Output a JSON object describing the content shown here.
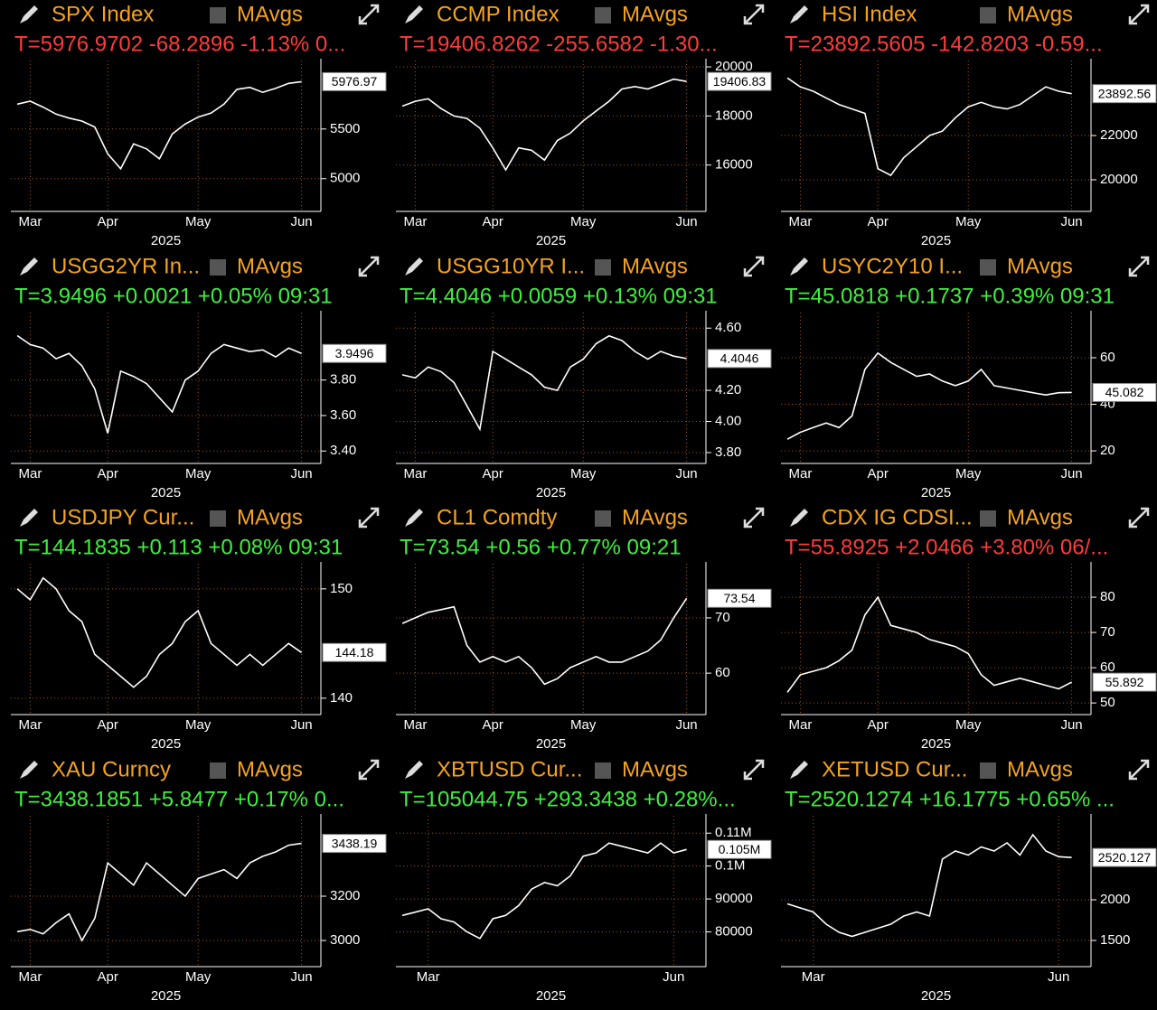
{
  "chart_data": [
    {
      "type": "line",
      "title": "SPX Index",
      "study_label": "MAvgs",
      "quote": "T=5976.9702 -68.2896 -1.13% 0...",
      "quote_color": "#ff3b3b",
      "title_color": "#f5a21e",
      "color": "#ffffff",
      "grid": true,
      "xlabel": "2025",
      "categories": [
        null,
        "Mar",
        null,
        null,
        null,
        null,
        null,
        "Apr",
        null,
        null,
        null,
        null,
        null,
        null,
        "May",
        null,
        null,
        null,
        null,
        null,
        null,
        null,
        "Jun",
        null
      ],
      "values": [
        5750,
        5780,
        5720,
        5650,
        5610,
        5580,
        5520,
        5250,
        5100,
        5350,
        5300,
        5200,
        5450,
        5550,
        5620,
        5660,
        5750,
        5900,
        5920,
        5870,
        5910,
        5960,
        5976.97,
        null
      ],
      "last_value_label": "5976.97",
      "ylim": [
        4670,
        6190
      ],
      "yticks": [
        5000,
        5500
      ]
    },
    {
      "type": "line",
      "title": "CCMP Index",
      "study_label": "MAvgs",
      "quote": "T=19406.8262 -255.6582 -1.30...",
      "quote_color": "#ff3b3b",
      "title_color": "#f5a21e",
      "color": "#ffffff",
      "grid": true,
      "xlabel": "2025",
      "categories": [
        null,
        "Mar",
        null,
        null,
        null,
        null,
        null,
        "Apr",
        null,
        null,
        null,
        null,
        null,
        null,
        "May",
        null,
        null,
        null,
        null,
        null,
        null,
        null,
        "Jun",
        null
      ],
      "values": [
        18400,
        18600,
        18700,
        18300,
        18000,
        17900,
        17500,
        16700,
        15800,
        16700,
        16600,
        16200,
        17000,
        17300,
        17800,
        18200,
        18600,
        19100,
        19200,
        19100,
        19300,
        19500,
        19406.83,
        null
      ],
      "last_value_label": "19406.83",
      "ylim": [
        14110,
        20260
      ],
      "yticks": [
        16000,
        18000,
        20000
      ]
    },
    {
      "type": "line",
      "title": "HSI Index",
      "study_label": "MAvgs",
      "quote": "T=23892.5605 -142.8203 -0.59...",
      "quote_color": "#ff3b3b",
      "title_color": "#f5a21e",
      "color": "#ffffff",
      "grid": true,
      "xlabel": "2025",
      "categories": [
        null,
        "Mar",
        null,
        null,
        null,
        null,
        null,
        "Apr",
        null,
        null,
        null,
        null,
        null,
        null,
        "May",
        null,
        null,
        null,
        null,
        null,
        null,
        null,
        "Jun",
        null
      ],
      "values": [
        24600,
        24200,
        24000,
        23700,
        23400,
        23200,
        23000,
        20500,
        20200,
        21000,
        21500,
        22000,
        22200,
        22800,
        23300,
        23500,
        23300,
        23200,
        23400,
        23800,
        24200,
        24000,
        23892.56,
        null
      ],
      "last_value_label": "23892.56",
      "ylim": [
        18570,
        25390
      ],
      "yticks": [
        20000,
        22000
      ]
    },
    {
      "type": "line",
      "title": "USGG2YR In...",
      "study_label": "MAvgs",
      "quote": "T=3.9496 +0.0021 +0.05% 09:31",
      "quote_color": "#3ef03e",
      "title_color": "#f5a21e",
      "color": "#ffffff",
      "grid": true,
      "xlabel": "2025",
      "categories": [
        null,
        "Mar",
        null,
        null,
        null,
        null,
        null,
        "Apr",
        null,
        null,
        null,
        null,
        null,
        null,
        "May",
        null,
        null,
        null,
        null,
        null,
        null,
        null,
        "Jun",
        null
      ],
      "values": [
        4.05,
        4.0,
        3.98,
        3.92,
        3.95,
        3.88,
        3.75,
        3.5,
        3.85,
        3.82,
        3.78,
        3.7,
        3.62,
        3.8,
        3.85,
        3.95,
        4.0,
        3.98,
        3.96,
        3.97,
        3.93,
        3.98,
        3.9496,
        null
      ],
      "last_value_label": "3.9496",
      "ylim": [
        3.33,
        4.18
      ],
      "yticks": [
        {
          "value": 3.4,
          "label": "3.40"
        },
        {
          "value": 3.6,
          "label": "3.60"
        },
        {
          "value": 3.8,
          "label": "3.80"
        }
      ]
    },
    {
      "type": "line",
      "title": "USGG10YR I...",
      "study_label": "MAvgs",
      "quote": "T=4.4046 +0.0059 +0.13% 09:31",
      "quote_color": "#3ef03e",
      "title_color": "#f5a21e",
      "color": "#ffffff",
      "grid": true,
      "xlabel": "2025",
      "categories": [
        null,
        "Mar",
        null,
        null,
        null,
        null,
        null,
        "Apr",
        null,
        null,
        null,
        null,
        null,
        null,
        "May",
        null,
        null,
        null,
        null,
        null,
        null,
        null,
        "Jun",
        null
      ],
      "values": [
        4.3,
        4.28,
        4.35,
        4.32,
        4.25,
        4.1,
        3.95,
        4.45,
        4.4,
        4.35,
        4.3,
        4.22,
        4.2,
        4.35,
        4.4,
        4.5,
        4.55,
        4.52,
        4.45,
        4.4,
        4.45,
        4.42,
        4.4046,
        null
      ],
      "last_value_label": "4.4046",
      "ylim": [
        3.73,
        4.7
      ],
      "yticks": [
        {
          "value": 3.8,
          "label": "3.80"
        },
        {
          "value": 4.0,
          "label": "4.00"
        },
        {
          "value": 4.2,
          "label": "4.20"
        },
        {
          "value": 4.6,
          "label": "4.60"
        }
      ]
    },
    {
      "type": "line",
      "title": "USYC2Y10 I...",
      "study_label": "MAvgs",
      "quote": "T=45.0818 +0.1737 +0.39% 09:31",
      "quote_color": "#3ef03e",
      "title_color": "#f5a21e",
      "color": "#ffffff",
      "grid": true,
      "xlabel": "2025",
      "categories": [
        null,
        "Mar",
        null,
        null,
        null,
        null,
        null,
        "Apr",
        null,
        null,
        null,
        null,
        null,
        null,
        "May",
        null,
        null,
        null,
        null,
        null,
        null,
        null,
        "Jun",
        null
      ],
      "values": [
        25,
        28,
        30,
        32,
        30,
        35,
        55,
        62,
        58,
        55,
        52,
        53,
        50,
        48,
        50,
        55,
        48,
        47,
        46,
        45,
        44,
        45,
        45.082,
        null
      ],
      "last_value_label": "45.082",
      "ylim": [
        14.6,
        79.4
      ],
      "yticks": [
        20,
        40,
        60
      ]
    },
    {
      "type": "line",
      "title": "USDJPY Cur...",
      "study_label": "MAvgs",
      "quote": "T=144.1835 +0.113 +0.08% 09:31",
      "quote_color": "#3ef03e",
      "title_color": "#f5a21e",
      "color": "#ffffff",
      "grid": true,
      "xlabel": "2025",
      "categories": [
        null,
        "Mar",
        null,
        null,
        null,
        null,
        null,
        "Apr",
        null,
        null,
        null,
        null,
        null,
        null,
        "May",
        null,
        null,
        null,
        null,
        null,
        null,
        null,
        "Jun",
        null
      ],
      "values": [
        150,
        149,
        151,
        150,
        148,
        147,
        144,
        143,
        142,
        141,
        142,
        144,
        145,
        147,
        148,
        145,
        144,
        143,
        144,
        143,
        144,
        145,
        144.18,
        null
      ],
      "last_value_label": "144.18",
      "ylim": [
        138.5,
        152.3
      ],
      "yticks": [
        140,
        150
      ]
    },
    {
      "type": "line",
      "title": "CL1 Comdty",
      "study_label": "MAvgs",
      "quote": "T=73.54 +0.56 +0.77% 09:21",
      "quote_color": "#3ef03e",
      "title_color": "#f5a21e",
      "color": "#ffffff",
      "grid": true,
      "xlabel": "2025",
      "categories": [
        null,
        "Mar",
        null,
        null,
        null,
        null,
        null,
        "Apr",
        null,
        null,
        null,
        null,
        null,
        null,
        "May",
        null,
        null,
        null,
        null,
        null,
        null,
        null,
        "Jun",
        null
      ],
      "values": [
        69,
        70,
        71,
        71.5,
        72,
        65,
        62,
        63,
        62,
        63,
        61,
        58,
        59,
        61,
        62,
        63,
        62,
        62,
        63,
        64,
        66,
        70,
        73.54,
        null
      ],
      "last_value_label": "73.54",
      "ylim": [
        52.5,
        79.8
      ],
      "yticks": [
        60,
        70
      ]
    },
    {
      "type": "line",
      "title": "CDX IG CDSI...",
      "study_label": "MAvgs",
      "quote": "T=55.8925 +2.0466 +3.80% 06/...",
      "quote_color": "#ff3b3b",
      "title_color": "#f5a21e",
      "color": "#ffffff",
      "grid": true,
      "xlabel": "2025",
      "categories": [
        null,
        "Mar",
        null,
        null,
        null,
        null,
        null,
        "Apr",
        null,
        null,
        null,
        null,
        null,
        null,
        "May",
        null,
        null,
        null,
        null,
        null,
        null,
        null,
        "Jun",
        null
      ],
      "values": [
        53,
        58,
        59,
        60,
        62,
        65,
        75,
        80,
        72,
        71,
        70,
        68,
        67,
        66,
        64,
        58,
        55,
        56,
        57,
        56,
        55,
        54,
        55.892,
        null
      ],
      "last_value_label": "55.892",
      "ylim": [
        46.7,
        89.5
      ],
      "yticks": [
        50,
        60,
        70,
        80
      ]
    },
    {
      "type": "line",
      "title": "XAU Curncy",
      "study_label": "MAvgs",
      "quote": "T=3438.1851 +5.8477 +0.17% 0...",
      "quote_color": "#3ef03e",
      "title_color": "#f5a21e",
      "color": "#ffffff",
      "grid": true,
      "xlabel": "2025",
      "categories": [
        null,
        "Mar",
        null,
        null,
        null,
        null,
        null,
        "Apr",
        null,
        null,
        null,
        null,
        null,
        null,
        "May",
        null,
        null,
        null,
        null,
        null,
        null,
        null,
        "Jun",
        null
      ],
      "values": [
        3040,
        3050,
        3030,
        3080,
        3120,
        3000,
        3100,
        3350,
        3300,
        3250,
        3350,
        3300,
        3250,
        3200,
        3280,
        3300,
        3320,
        3280,
        3350,
        3380,
        3400,
        3430,
        3438.19,
        null
      ],
      "last_value_label": "3438.19",
      "ylim": [
        2882,
        3563
      ],
      "yticks": [
        3000,
        3200
      ]
    },
    {
      "type": "line",
      "title": "XBTUSD Cur...",
      "study_label": "MAvgs",
      "quote": "T=105044.75 +293.3438 +0.28%...",
      "quote_color": "#3ef03e",
      "title_color": "#f5a21e",
      "color": "#ffffff",
      "grid": true,
      "xlabel": "2025",
      "categories": [
        null,
        null,
        "Mar",
        null,
        null,
        null,
        null,
        null,
        null,
        null,
        null,
        null,
        null,
        null,
        null,
        null,
        null,
        null,
        null,
        null,
        null,
        "Jun",
        null,
        null
      ],
      "values": [
        85000,
        86000,
        87000,
        84000,
        83000,
        80000,
        78000,
        84000,
        85000,
        88000,
        93000,
        95000,
        94000,
        97000,
        103000,
        104000,
        107000,
        106000,
        105000,
        104000,
        107000,
        104000,
        105044.75,
        null
      ],
      "last_value_label": "0.105M",
      "ylim": [
        69440,
        115280
      ],
      "yticks": [
        80000,
        90000,
        {
          "value": 100000,
          "label": "0.1M"
        },
        {
          "value": 110000,
          "label": "0.11M"
        }
      ]
    },
    {
      "type": "line",
      "title": "XETUSD Cur...",
      "study_label": "MAvgs",
      "quote": "T=2520.1274 +16.1775 +0.65% ...",
      "quote_color": "#3ef03e",
      "title_color": "#f5a21e",
      "color": "#ffffff",
      "grid": true,
      "xlabel": "2025",
      "categories": [
        null,
        null,
        "Mar",
        null,
        null,
        null,
        null,
        null,
        null,
        null,
        null,
        null,
        null,
        null,
        null,
        null,
        null,
        null,
        null,
        null,
        null,
        "Jun",
        null,
        null
      ],
      "values": [
        1950,
        1900,
        1850,
        1700,
        1600,
        1550,
        1600,
        1650,
        1700,
        1800,
        1850,
        1800,
        2500,
        2600,
        2550,
        2650,
        2600,
        2700,
        2550,
        2800,
        2600,
        2530,
        2520.127,
        null
      ],
      "last_value_label": "2520.127",
      "ylim": [
        1178,
        3033
      ],
      "yticks": [
        1500,
        2000
      ]
    }
  ]
}
